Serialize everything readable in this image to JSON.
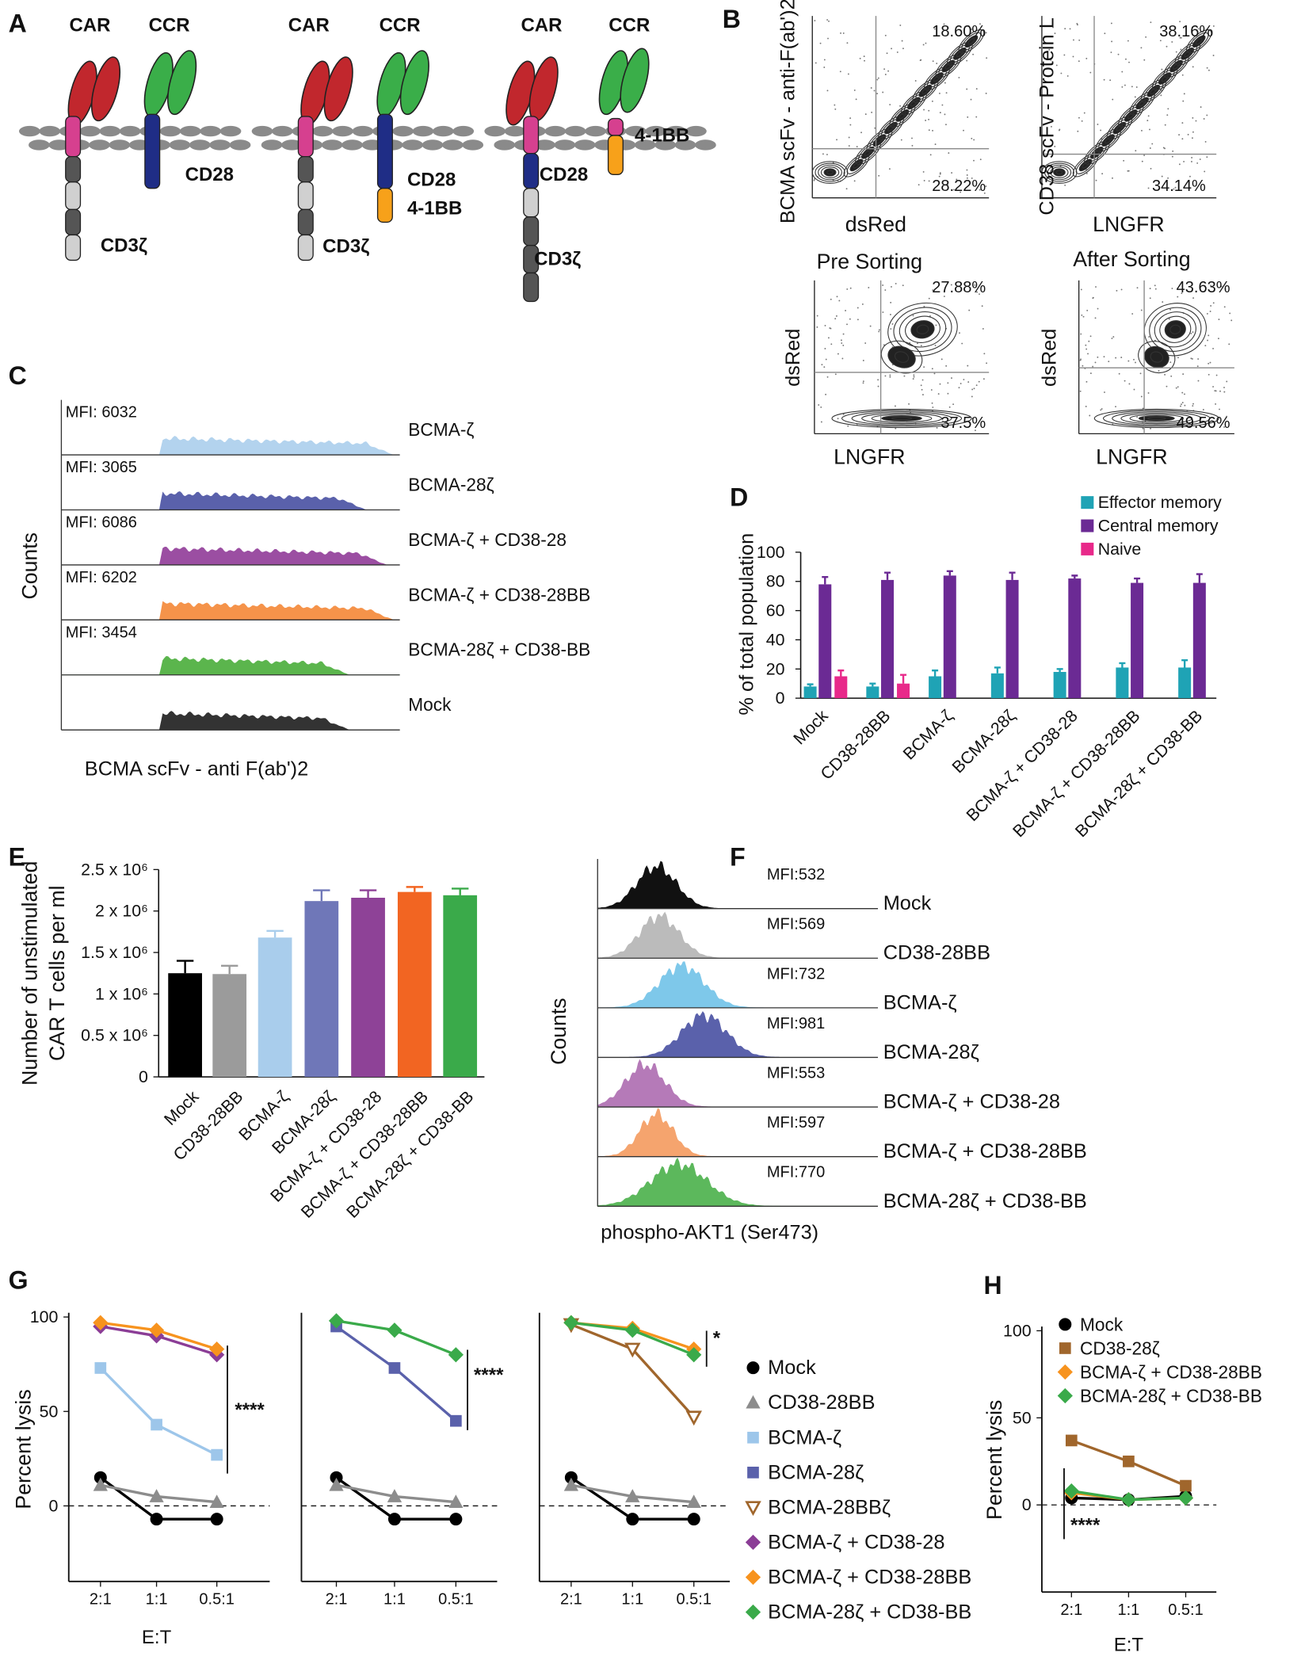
{
  "panel_labels": [
    "A",
    "B",
    "C",
    "D",
    "E",
    "F",
    "G",
    "H"
  ],
  "diagram": {
    "constructs": [
      {
        "receptors": [
          "CAR",
          "CCR"
        ],
        "domains": [
          "CD28",
          "CD3ζ"
        ]
      },
      {
        "receptors": [
          "CAR",
          "CCR"
        ],
        "domains": [
          "CD28",
          "4-1BB",
          "CD3ζ"
        ]
      },
      {
        "receptors": [
          "CAR",
          "CCR"
        ],
        "domains": [
          "CD28",
          "CD3ζ",
          "4-1BB"
        ]
      }
    ]
  },
  "chart_data": [
    {
      "type": "contour",
      "xlabel": "dsRed",
      "ylabel": "BCMA scFv - anti-F(ab')2",
      "annotations": [
        "18.60%",
        "28.22%"
      ]
    },
    {
      "type": "contour",
      "xlabel": "LNGFR",
      "ylabel": "CD38 scFv - Protein L",
      "annotations": [
        "38.16%",
        "34.14%"
      ]
    },
    {
      "type": "contour",
      "title": "Pre Sorting",
      "xlabel": "LNGFR",
      "ylabel": "dsRed",
      "annotations": [
        "27.88%",
        "37.5%"
      ]
    },
    {
      "type": "contour",
      "title": "After Sorting",
      "xlabel": "LNGFR",
      "ylabel": "dsRed",
      "annotations": [
        "43.63%",
        "49.56%"
      ]
    },
    {
      "type": "histogram-stack",
      "xlabel": "BCMA scFv - anti F(ab')2",
      "ylabel": "Counts",
      "series": [
        {
          "name": "BCMA-ζ",
          "color": "#b3d3ee",
          "label": "MFI: 6032"
        },
        {
          "name": "BCMA-28ζ",
          "color": "#5a61ab",
          "label": "MFI: 3065"
        },
        {
          "name": "BCMA-ζ + CD38-28",
          "color": "#9b4ea2",
          "label": "MFI: 6086"
        },
        {
          "name": "BCMA-ζ + CD38-28BB",
          "color": "#f5934a",
          "label": "MFI: 6202"
        },
        {
          "name": "BCMA-28ζ + CD38-BB",
          "color": "#5bb54d",
          "label": "MFI: 3454"
        },
        {
          "name": "Mock",
          "color": "#333333"
        }
      ]
    },
    {
      "type": "bar",
      "ylabel": "% of total population",
      "categories": [
        "Mock",
        "CD38-28BB",
        "BCMA-ζ",
        "BCMA-28ζ",
        "BCMA-ζ + CD38-28",
        "BCMA-ζ + CD38-28BB",
        "BCMA-28ζ + CD38-BB"
      ],
      "series": [
        {
          "name": "Effector memory",
          "color": "#1fa3b5",
          "values": [
            8,
            8,
            15,
            17,
            18,
            21,
            21
          ],
          "errors": [
            1.5,
            2,
            4,
            4,
            2,
            3,
            5
          ]
        },
        {
          "name": "Central memory",
          "color": "#6b2a94",
          "values": [
            78,
            81,
            84,
            81,
            82,
            79,
            79
          ],
          "errors": [
            5,
            5,
            3,
            5,
            2,
            3,
            6
          ]
        },
        {
          "name": "Naive",
          "color": "#e8298a",
          "values": [
            15,
            10,
            null,
            null,
            null,
            null,
            null
          ],
          "errors": [
            4,
            6,
            null,
            null,
            null,
            null,
            null
          ]
        }
      ],
      "ylim": [
        0,
        100
      ],
      "yticks": [
        0,
        20,
        40,
        60,
        80,
        100
      ]
    },
    {
      "type": "bar",
      "ylabel": [
        "Number of unstimulated",
        "CAR T cells per ml"
      ],
      "categories": [
        "Mock",
        "CD38-28BB",
        "BCMA-ζ",
        "BCMA-28ζ",
        "BCMA-ζ + CD38-28",
        "BCMA-ζ + CD38-28BB",
        "BCMA-28ζ + CD38-BB"
      ],
      "values": [
        1250000,
        1240000,
        1680000,
        2120000,
        2160000,
        2230000,
        2190000
      ],
      "errors": [
        150000,
        100000,
        80000,
        130000,
        90000,
        60000,
        80000
      ],
      "colors": [
        "#000000",
        "#9b9b9b",
        "#a9cdec",
        "#6f77b8",
        "#8e4297",
        "#f26522",
        "#3aaa4a"
      ],
      "ylim": [
        0,
        2500000
      ],
      "yticks": [
        0,
        {
          "value": 500000,
          "label": "0.5 x 10⁶"
        },
        {
          "value": 1000000,
          "label": "1 x 10⁶"
        },
        {
          "value": 1500000,
          "label": "1.5 x 10⁶"
        },
        {
          "value": 2000000,
          "label": "2 x 10⁶"
        },
        {
          "value": 2500000,
          "label": "2.5 x 10⁶"
        }
      ]
    },
    {
      "type": "histogram-stack",
      "xlabel": "phospho-AKT1 (Ser473)",
      "ylabel": "Counts",
      "series": [
        {
          "name": "Mock",
          "color": "#111111",
          "label": "MFI:532"
        },
        {
          "name": "CD38-28BB",
          "color": "#bbbbbb",
          "label": "MFI:569"
        },
        {
          "name": "BCMA-ζ",
          "color": "#7ec8ea",
          "label": "MFI:732"
        },
        {
          "name": "BCMA-28ζ",
          "color": "#5a61ab",
          "label": "MFI:981"
        },
        {
          "name": "BCMA-ζ + CD38-28",
          "color": "#b57ab8",
          "label": "MFI:553"
        },
        {
          "name": "BCMA-ζ + CD38-28BB",
          "color": "#f5a46e",
          "label": "MFI:597"
        },
        {
          "name": "BCMA-28ζ + CD38-BB",
          "color": "#5cb85c",
          "label": "MFI:770"
        }
      ]
    },
    {
      "type": "line",
      "ylabel": "Percent lysis",
      "xlabel": "E:T",
      "categories": [
        "2:1",
        "1:1",
        "0.5:1"
      ],
      "ylim": [
        -40,
        100
      ],
      "yticks": [
        0,
        50,
        100
      ],
      "zero_line": true,
      "annotation": "****",
      "series": [
        {
          "name": "Mock",
          "color": "#000000",
          "marker": "circle",
          "values": [
            15,
            -7,
            -7
          ]
        },
        {
          "name": "CD38-28BB",
          "color": "#8c8c8c",
          "marker": "triangle",
          "values": [
            11,
            5,
            2
          ]
        },
        {
          "name": "BCMA-ζ",
          "color": "#9dc6ea",
          "marker": "square",
          "values": [
            73,
            43,
            27
          ]
        },
        {
          "name": "BCMA-ζ + CD38-28",
          "color": "#8b3d96",
          "marker": "diamond",
          "values": [
            95,
            90,
            80
          ]
        },
        {
          "name": "BCMA-ζ + CD38-28BB",
          "color": "#f7931e",
          "marker": "diamond",
          "values": [
            97,
            93,
            83
          ]
        }
      ]
    },
    {
      "type": "line",
      "categories": [
        "2:1",
        "1:1",
        "0.5:1"
      ],
      "ylim": [
        -40,
        100
      ],
      "zero_line": true,
      "annotation": "****",
      "series": [
        {
          "name": "Mock",
          "color": "#000000",
          "marker": "circle",
          "values": [
            15,
            -7,
            -7
          ]
        },
        {
          "name": "CD38-28BB",
          "color": "#8c8c8c",
          "marker": "triangle",
          "values": [
            11,
            5,
            2
          ]
        },
        {
          "name": "BCMA-28ζ",
          "color": "#5a61ab",
          "marker": "square",
          "values": [
            95,
            73,
            45
          ]
        },
        {
          "name": "BCMA-28ζ + CD38-BB",
          "color": "#3aaa4a",
          "marker": "diamond",
          "values": [
            98,
            93,
            80
          ]
        }
      ]
    },
    {
      "type": "line",
      "categories": [
        "2:1",
        "1:1",
        "0.5:1"
      ],
      "ylim": [
        -40,
        100
      ],
      "zero_line": true,
      "annotation": "*",
      "series": [
        {
          "name": "Mock",
          "color": "#000000",
          "marker": "circle",
          "values": [
            15,
            -7,
            -7
          ]
        },
        {
          "name": "CD38-28BB",
          "color": "#8c8c8c",
          "marker": "triangle",
          "values": [
            11,
            5,
            2
          ]
        },
        {
          "name": "BCMA-28BBζ",
          "color": "#a0662c",
          "marker": "triangle-down-open",
          "values": [
            96,
            83,
            47
          ]
        },
        {
          "name": "BCMA-ζ + CD38-28BB",
          "color": "#f7931e",
          "marker": "diamond",
          "values": [
            97,
            94,
            83
          ]
        },
        {
          "name": "BCMA-28ζ + CD38-BB",
          "color": "#3aaa4a",
          "marker": "diamond",
          "values": [
            97,
            93,
            80
          ]
        }
      ],
      "legend": [
        {
          "name": "Mock",
          "color": "#000000",
          "marker": "circle"
        },
        {
          "name": "CD38-28BB",
          "color": "#8c8c8c",
          "marker": "triangle"
        },
        {
          "name": "BCMA-ζ",
          "color": "#9dc6ea",
          "marker": "square"
        },
        {
          "name": "BCMA-28ζ",
          "color": "#5a61ab",
          "marker": "square"
        },
        {
          "name": "BCMA-28BBζ",
          "color": "#a0662c",
          "marker": "triangle-down-open"
        },
        {
          "name": "BCMA-ζ + CD38-28",
          "color": "#8b3d96",
          "marker": "diamond"
        },
        {
          "name": "BCMA-ζ + CD38-28BB",
          "color": "#f7931e",
          "marker": "diamond"
        },
        {
          "name": "BCMA-28ζ + CD38-BB",
          "color": "#3aaa4a",
          "marker": "diamond"
        }
      ]
    },
    {
      "type": "line",
      "ylabel": "Percent lysis",
      "xlabel": "E:T",
      "categories": [
        "2:1",
        "1:1",
        "0.5:1"
      ],
      "ylim": [
        -50,
        100
      ],
      "yticks": [
        0,
        50,
        100
      ],
      "zero_line": true,
      "annotation": "****",
      "series": [
        {
          "name": "Mock",
          "color": "#000000",
          "marker": "circle",
          "values": [
            4,
            3,
            5
          ]
        },
        {
          "name": "CD38-28ζ",
          "color": "#a0662c",
          "marker": "square",
          "values": [
            37,
            25,
            11
          ]
        },
        {
          "name": "BCMA-ζ + CD38-28BB",
          "color": "#f7931e",
          "marker": "diamond",
          "values": [
            7,
            3,
            4
          ]
        },
        {
          "name": "BCMA-28ζ + CD38-BB",
          "color": "#3aaa4a",
          "marker": "diamond",
          "values": [
            8,
            3,
            4
          ]
        }
      ]
    }
  ]
}
